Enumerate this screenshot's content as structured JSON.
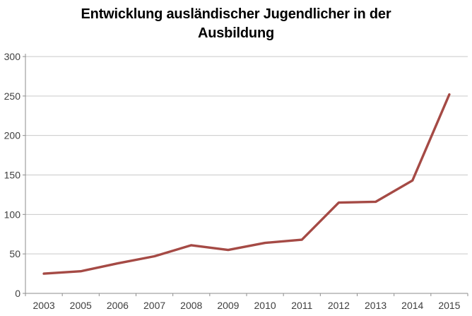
{
  "chart_data": {
    "type": "line",
    "title": "Entwicklung ausländischer Jugendlicher in der Ausbildung",
    "categories": [
      "2003",
      "2005",
      "2006",
      "2007",
      "2008",
      "2009",
      "2010",
      "2011",
      "2012",
      "2013",
      "2014",
      "2015"
    ],
    "values": [
      25,
      28,
      38,
      47,
      61,
      55,
      64,
      68,
      115,
      116,
      143,
      252
    ],
    "xlabel": "",
    "ylabel": "",
    "ylim": [
      0,
      300
    ],
    "ytick_step": 50,
    "ytick_labels": [
      "0",
      "50",
      "100",
      "150",
      "200",
      "250",
      "300"
    ],
    "grid": true,
    "legend": false,
    "legend_position": "none",
    "colors": {
      "line": "#A54A45",
      "grid": "#C9C9C9",
      "axis": "#8E8E8E",
      "tick_label": "#3F3F3F",
      "title": "#000000",
      "background": "#FFFFFF"
    }
  }
}
